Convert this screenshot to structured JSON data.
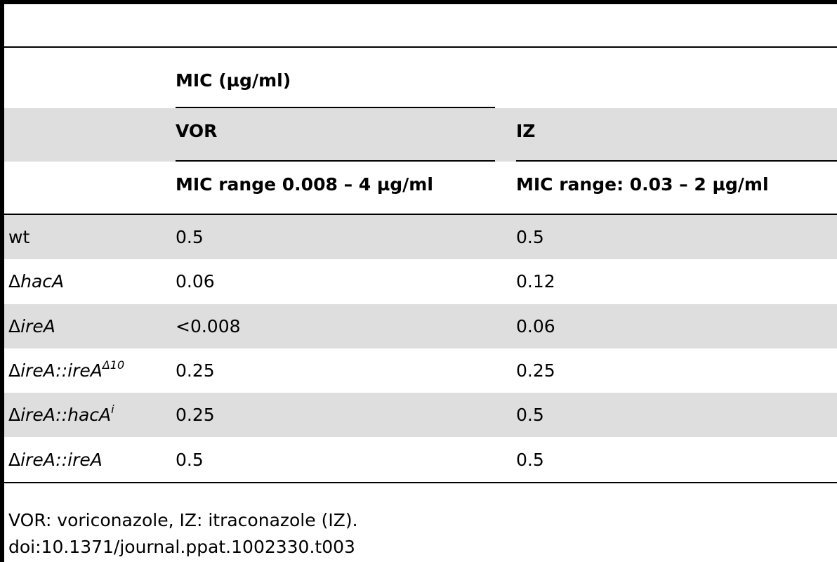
{
  "table": {
    "header": {
      "mic_group": "MIC (µg/ml)",
      "col_vor": "VOR",
      "col_iz": "IZ",
      "vor_range": "MIC range 0.008 – 4 µg/ml",
      "iz_range": "MIC range: 0.03 – 2 µg/ml"
    },
    "rows": [
      {
        "prefix": "",
        "gene": "",
        "plain": "wt",
        "sep": "",
        "gene2": "",
        "sup": "",
        "vor": "0.5",
        "iz": "0.5"
      },
      {
        "prefix": "Δ",
        "gene": "hacA",
        "plain": "",
        "sep": "",
        "gene2": "",
        "sup": "",
        "vor": "0.06",
        "iz": "0.12"
      },
      {
        "prefix": "Δ",
        "gene": "ireA",
        "plain": "",
        "sep": "",
        "gene2": "",
        "sup": "",
        "vor": "<0.008",
        "iz": "0.06"
      },
      {
        "prefix": "Δ",
        "gene": "ireA",
        "plain": "",
        "sep": "::",
        "gene2": "ireA",
        "sup": "Δ10",
        "vor": "0.25",
        "iz": "0.25"
      },
      {
        "prefix": "Δ",
        "gene": "ireA",
        "plain": "",
        "sep": "::",
        "gene2": "hacA",
        "sup": "i",
        "vor": "0.25",
        "iz": "0.5"
      },
      {
        "prefix": "Δ",
        "gene": "ireA",
        "plain": "",
        "sep": "::",
        "gene2": "ireA",
        "sup": "",
        "vor": "0.5",
        "iz": "0.5"
      }
    ]
  },
  "footnote": {
    "line1": "VOR: voriconazole, IZ: itraconazole (IZ).",
    "line2": "doi:10.1371/journal.ppat.1002330.t003"
  }
}
